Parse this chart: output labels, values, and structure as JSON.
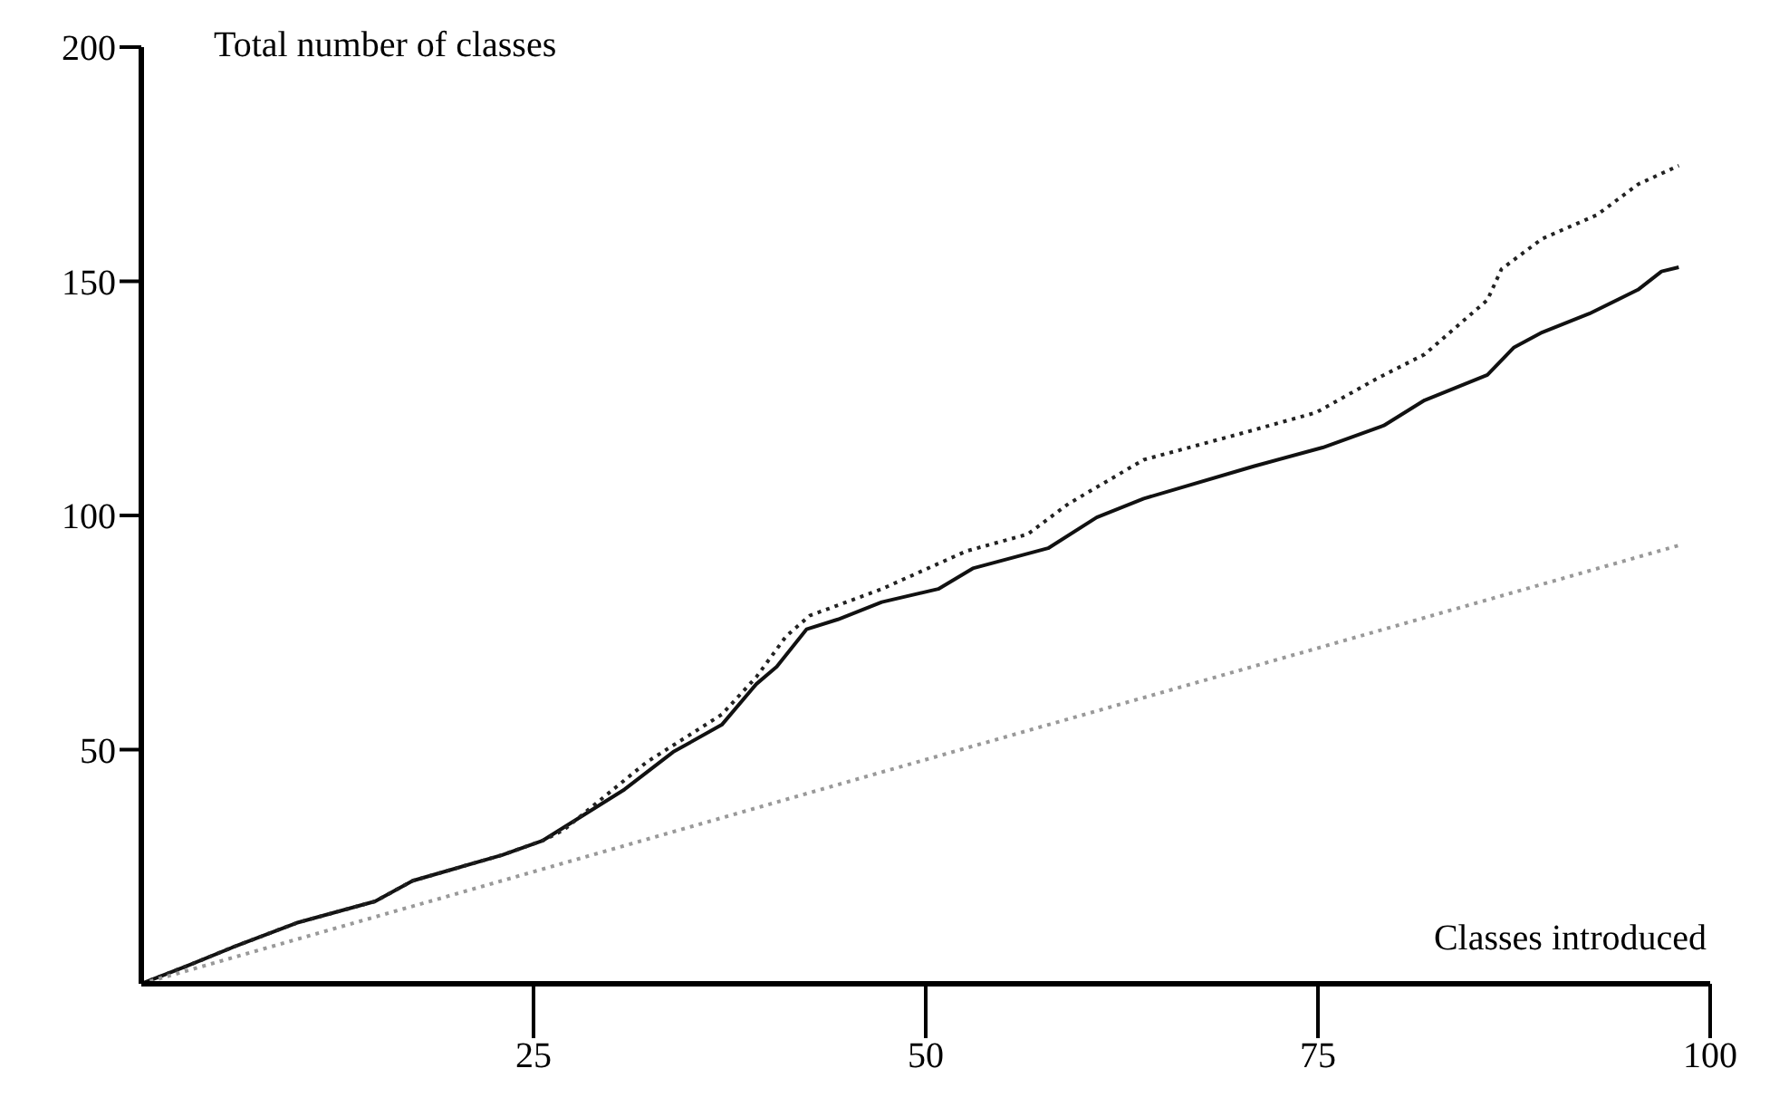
{
  "chart_data": {
    "type": "line",
    "ylabel": "Total number of classes",
    "xlabel": "Classes introduced",
    "xlim": [
      0,
      100
    ],
    "xticks": [
      25,
      50,
      75,
      100
    ],
    "ylim": [
      0,
      200
    ],
    "yticks": [
      50,
      100,
      150,
      200
    ],
    "marker": "none",
    "series": [
      {
        "color": "#111111",
        "line_style": "solid",
        "x": [
          0,
          2.9,
          5.9,
          9.9,
          14.9,
          17.3,
          23,
          25.6,
          30.8,
          33.9,
          37,
          39.2,
          40.5,
          42.4,
          44.4,
          47.2,
          50.8,
          53,
          57.8,
          60.9,
          63.9,
          70.9,
          75.3,
          79.2,
          81.8,
          85.8,
          87.5,
          89.3,
          92.3,
          95.4,
          96.9,
          98
        ],
        "values": [
          0,
          3.8,
          7.9,
          13,
          17.6,
          22,
          27.5,
          30.6,
          41.5,
          49.5,
          55.3,
          64,
          67.7,
          75.7,
          77.8,
          81.5,
          84.3,
          88.7,
          93,
          99.6,
          103.6,
          110.5,
          114.5,
          119.2,
          124.6,
          130,
          135.9,
          139.1,
          143.1,
          148.2,
          152.1,
          153
        ]
      },
      {
        "color": "#222222",
        "line_style": "dotted",
        "x": [
          0,
          2.9,
          5.9,
          9.9,
          14.9,
          17.3,
          23,
          25.6,
          26.9,
          32.2,
          37,
          39.2,
          41.1,
          42.6,
          47.2,
          52.6,
          56.5,
          59.1,
          61.7,
          63.9,
          70.1,
          74.9,
          78.8,
          81.8,
          85.8,
          86.7,
          89.3,
          92.8,
          95.4,
          98
        ],
        "values": [
          0,
          3.8,
          7.9,
          13,
          17.6,
          22,
          27.5,
          30.6,
          32.8,
          47.3,
          57.5,
          65.5,
          74.2,
          78.6,
          84.3,
          92.4,
          96,
          102.5,
          107.6,
          111.9,
          117.5,
          122,
          129.3,
          134.4,
          146,
          152.6,
          159.1,
          164.2,
          170.7,
          174.7
        ]
      },
      {
        "color": "#999999",
        "line_style": "dotted",
        "x": [
          0,
          47.2,
          98.2
        ],
        "values": [
          0,
          45.2,
          93.8
        ]
      }
    ]
  }
}
